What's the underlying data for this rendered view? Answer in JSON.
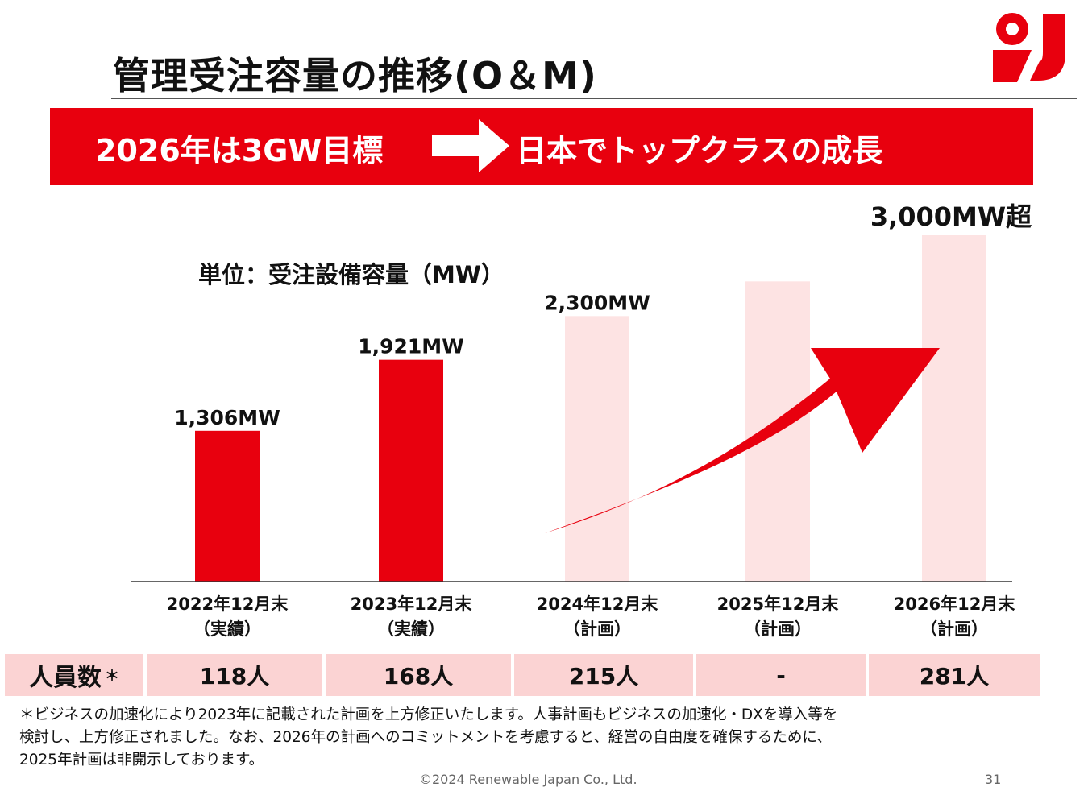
{
  "slide": {
    "title": "管理受注容量の推移(O＆M)",
    "banner_left": "2026年は3GW目標",
    "banner_right": "日本でトップクラスの成長",
    "unit_label": "単位：受注設備容量（MW）",
    "footer": {
      "copyright": "©2024 Renewable Japan Co., Ltd.",
      "page_number": "31"
    },
    "note_lines": [
      "＊ビジネスの加速化により2023年に記載された計画を上方修正いたします。人事計画もビジネスの加速化・DXを導入等を",
      "検討し、上方修正されました。なお、2026年の計画へのコミットメントを考慮すると、経営の自由度を確保するために、",
      "2025年計画は非開示しております。"
    ],
    "staff_row": {
      "label": "人員数",
      "marker": "＊",
      "values": [
        "118人",
        "168人",
        "215人",
        "-",
        "281人"
      ]
    },
    "colors": {
      "accent": "#e8000e",
      "planned_bar": "#fde3e3",
      "staff_fill": "#fbd3d3"
    },
    "logo_icon": "renewable-japan-logo"
  },
  "chart_data": {
    "type": "bar",
    "categories": [
      [
        "2022年12月末",
        "（実績）"
      ],
      [
        "2023年12月末",
        "（実績）"
      ],
      [
        "2024年12月末",
        "（計画）"
      ],
      [
        "2025年12月末",
        "（計画）"
      ],
      [
        "2026年12月末",
        "（計画）"
      ]
    ],
    "values": [
      1306,
      1921,
      2300,
      2600,
      3000
    ],
    "data_labels": [
      "1,306MW",
      "1,921MW",
      "2,300MW",
      "",
      "3,000MW超"
    ],
    "status": [
      "actual",
      "actual",
      "plan",
      "plan",
      "plan"
    ],
    "ylim": [
      0,
      3000
    ],
    "grid": false,
    "legend": "none",
    "annotation": "upward-trend-arrow"
  }
}
